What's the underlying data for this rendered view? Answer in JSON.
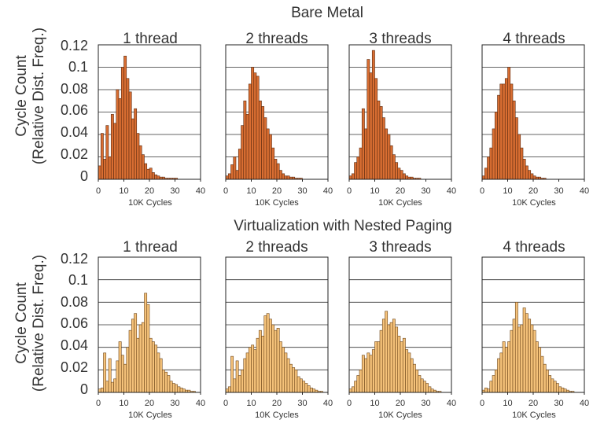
{
  "chart_data": [
    {
      "type": "bar",
      "group_title": "Bare Metal",
      "ylabel_line1": "Cycle Count",
      "ylabel_line2": "(Relative Dist. Freq.)",
      "y_ticks": [
        "0.12",
        "0.1",
        "0.08",
        "0.06",
        "0.04",
        "0.02",
        "0"
      ],
      "ylim": [
        0,
        0.12
      ],
      "colors": {
        "fill": "#d96e32",
        "stroke": "#5a2a10"
      },
      "panels": [
        {
          "title": "1 thread",
          "xlabel": "10K Cycles",
          "xlim": [
            0,
            40
          ],
          "x_ticks": [
            "0",
            "10",
            "20",
            "30",
            "40"
          ],
          "bin_width": 1,
          "values": [
            0.012,
            0.041,
            0.018,
            0.048,
            0.02,
            0.058,
            0.05,
            0.08,
            0.072,
            0.1,
            0.11,
            0.09,
            0.078,
            0.054,
            0.063,
            0.041,
            0.03,
            0.022,
            0.014,
            0.009,
            0.01,
            0.006,
            0.004,
            0.003,
            0.002,
            0.002,
            0.001,
            0.001,
            0.001,
            0.001,
            0.001,
            0,
            0,
            0,
            0,
            0,
            0,
            0,
            0,
            0
          ]
        },
        {
          "title": "2 threads",
          "xlabel": "10K Cycles",
          "xlim": [
            0,
            40
          ],
          "x_ticks": [
            "0",
            "10",
            "20",
            "30",
            "40"
          ],
          "bin_width": 1,
          "values": [
            0.003,
            0.005,
            0.013,
            0.02,
            0.008,
            0.027,
            0.048,
            0.07,
            0.058,
            0.085,
            0.1,
            0.095,
            0.092,
            0.07,
            0.065,
            0.055,
            0.045,
            0.04,
            0.028,
            0.018,
            0.014,
            0.008,
            0.005,
            0.003,
            0.003,
            0.002,
            0.002,
            0.001,
            0.001,
            0.001,
            0,
            0,
            0,
            0,
            0,
            0,
            0,
            0,
            0,
            0
          ]
        },
        {
          "title": "3 threads",
          "xlabel": "10K Cycles",
          "xlim": [
            0,
            40
          ],
          "x_ticks": [
            "0",
            "10",
            "20",
            "30",
            "40"
          ],
          "bin_width": 1,
          "values": [
            0.003,
            0.005,
            0.015,
            0.02,
            0.028,
            0.063,
            0.045,
            0.107,
            0.095,
            0.115,
            0.09,
            0.07,
            0.065,
            0.055,
            0.045,
            0.04,
            0.03,
            0.022,
            0.015,
            0.01,
            0.008,
            0.005,
            0.003,
            0.002,
            0.002,
            0.001,
            0.001,
            0.001,
            0,
            0,
            0,
            0,
            0,
            0,
            0,
            0,
            0,
            0,
            0,
            0
          ]
        },
        {
          "title": "4 threads",
          "xlabel": "10K Cycles",
          "xlim": [
            0,
            40
          ],
          "x_ticks": [
            "0",
            "10",
            "20",
            "30",
            "40"
          ],
          "bin_width": 1,
          "values": [
            0.003,
            0.01,
            0.02,
            0.028,
            0.045,
            0.06,
            0.075,
            0.085,
            0.085,
            0.09,
            0.1,
            0.085,
            0.07,
            0.055,
            0.04,
            0.028,
            0.018,
            0.012,
            0.008,
            0.005,
            0.003,
            0.002,
            0.002,
            0.001,
            0.001,
            0,
            0,
            0,
            0,
            0,
            0,
            0,
            0,
            0,
            0,
            0,
            0,
            0,
            0,
            0
          ]
        }
      ]
    },
    {
      "type": "bar",
      "group_title": "Virtualization with Nested Paging",
      "ylabel_line1": "Cycle Count",
      "ylabel_line2": "(Relative Dist. Freq.)",
      "y_ticks": [
        "0.12",
        "0.1",
        "0.08",
        "0.06",
        "0.04",
        "0.02",
        "0"
      ],
      "ylim": [
        0,
        0.12
      ],
      "colors": {
        "fill": "#f5c27a",
        "stroke": "#6b4418"
      },
      "panels": [
        {
          "title": "1 thread",
          "xlabel": "10K Cycles",
          "xlim": [
            0,
            40
          ],
          "x_ticks": [
            "0",
            "10",
            "20",
            "30",
            "40"
          ],
          "bin_width": 1,
          "values": [
            0.003,
            0.004,
            0.035,
            0.01,
            0.03,
            0.009,
            0.012,
            0.028,
            0.045,
            0.033,
            0.025,
            0.04,
            0.055,
            0.065,
            0.07,
            0.048,
            0.06,
            0.062,
            0.088,
            0.078,
            0.048,
            0.045,
            0.042,
            0.035,
            0.03,
            0.02,
            0.018,
            0.015,
            0.01,
            0.008,
            0.007,
            0.005,
            0.004,
            0.003,
            0.002,
            0.002,
            0.001,
            0.001,
            0,
            0
          ]
        },
        {
          "title": "2 threads",
          "xlabel": "10K Cycles",
          "xlim": [
            0,
            40
          ],
          "x_ticks": [
            "0",
            "10",
            "20",
            "30",
            "40"
          ],
          "bin_width": 1,
          "values": [
            0.003,
            0.005,
            0.032,
            0.012,
            0.028,
            0.015,
            0.02,
            0.03,
            0.035,
            0.04,
            0.042,
            0.038,
            0.048,
            0.055,
            0.05,
            0.068,
            0.07,
            0.065,
            0.06,
            0.055,
            0.057,
            0.045,
            0.04,
            0.035,
            0.03,
            0.025,
            0.022,
            0.02,
            0.014,
            0.012,
            0.01,
            0.008,
            0.006,
            0.004,
            0.003,
            0.002,
            0.001,
            0.001,
            0,
            0
          ]
        },
        {
          "title": "3 threads",
          "xlabel": "10K Cycles",
          "xlim": [
            0,
            40
          ],
          "x_ticks": [
            "0",
            "10",
            "20",
            "30",
            "40"
          ],
          "bin_width": 1,
          "values": [
            0.003,
            0.005,
            0.01,
            0.015,
            0.02,
            0.033,
            0.03,
            0.035,
            0.033,
            0.038,
            0.045,
            0.045,
            0.055,
            0.065,
            0.072,
            0.06,
            0.062,
            0.065,
            0.058,
            0.05,
            0.045,
            0.048,
            0.038,
            0.035,
            0.03,
            0.025,
            0.02,
            0.015,
            0.012,
            0.01,
            0.008,
            0.005,
            0.003,
            0.002,
            0.001,
            0.001,
            0,
            0,
            0,
            0
          ]
        },
        {
          "title": "4 threads",
          "xlabel": "10K Cycles",
          "xlim": [
            0,
            40
          ],
          "x_ticks": [
            "0",
            "10",
            "20",
            "30",
            "40"
          ],
          "bin_width": 1,
          "values": [
            0.002,
            0.004,
            0.003,
            0.01,
            0.015,
            0.02,
            0.03,
            0.035,
            0.045,
            0.04,
            0.045,
            0.055,
            0.065,
            0.08,
            0.058,
            0.06,
            0.075,
            0.07,
            0.065,
            0.06,
            0.055,
            0.045,
            0.04,
            0.032,
            0.025,
            0.02,
            0.015,
            0.012,
            0.01,
            0.008,
            0.005,
            0.004,
            0.003,
            0.002,
            0.001,
            0.001,
            0,
            0,
            0,
            0
          ]
        }
      ]
    }
  ]
}
